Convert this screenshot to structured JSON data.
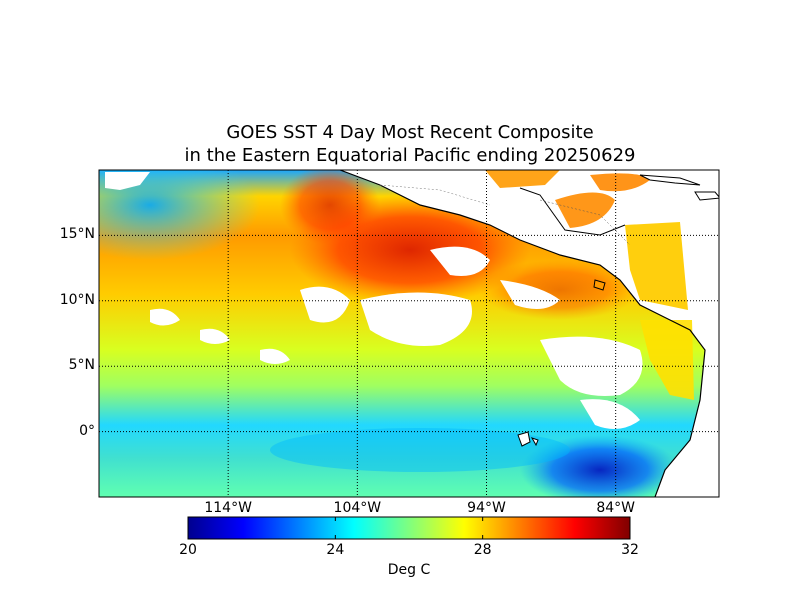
{
  "title": {
    "line1": "GOES SST 4 Day Most Recent Composite",
    "line2": "in the Eastern Equatorial Pacific ending 20250629"
  },
  "map": {
    "lat_range": [
      -5,
      20
    ],
    "lon_range": [
      -124,
      -76
    ],
    "lat_ticks": [
      {
        "value": 15,
        "label": "15°N"
      },
      {
        "value": 10,
        "label": "10°N"
      },
      {
        "value": 5,
        "label": "5°N"
      },
      {
        "value": 0,
        "label": "0°"
      }
    ],
    "lon_ticks": [
      {
        "value": -114,
        "label": "114°W"
      },
      {
        "value": -104,
        "label": "104°W"
      },
      {
        "value": -94,
        "label": "94°W"
      },
      {
        "value": -84,
        "label": "84°W"
      }
    ],
    "grid": "dotted",
    "land_color": "#ffffff",
    "cloud_gap_color": "#ffffff"
  },
  "colorbar": {
    "min": 20,
    "max": 32,
    "ticks": [
      "20",
      "24",
      "28",
      "32"
    ],
    "label": "Deg C",
    "colormap": "jet",
    "colors": [
      "#00008f",
      "#0000ff",
      "#00ffff",
      "#7fff7f",
      "#ffff00",
      "#ff0000",
      "#800000"
    ]
  }
}
